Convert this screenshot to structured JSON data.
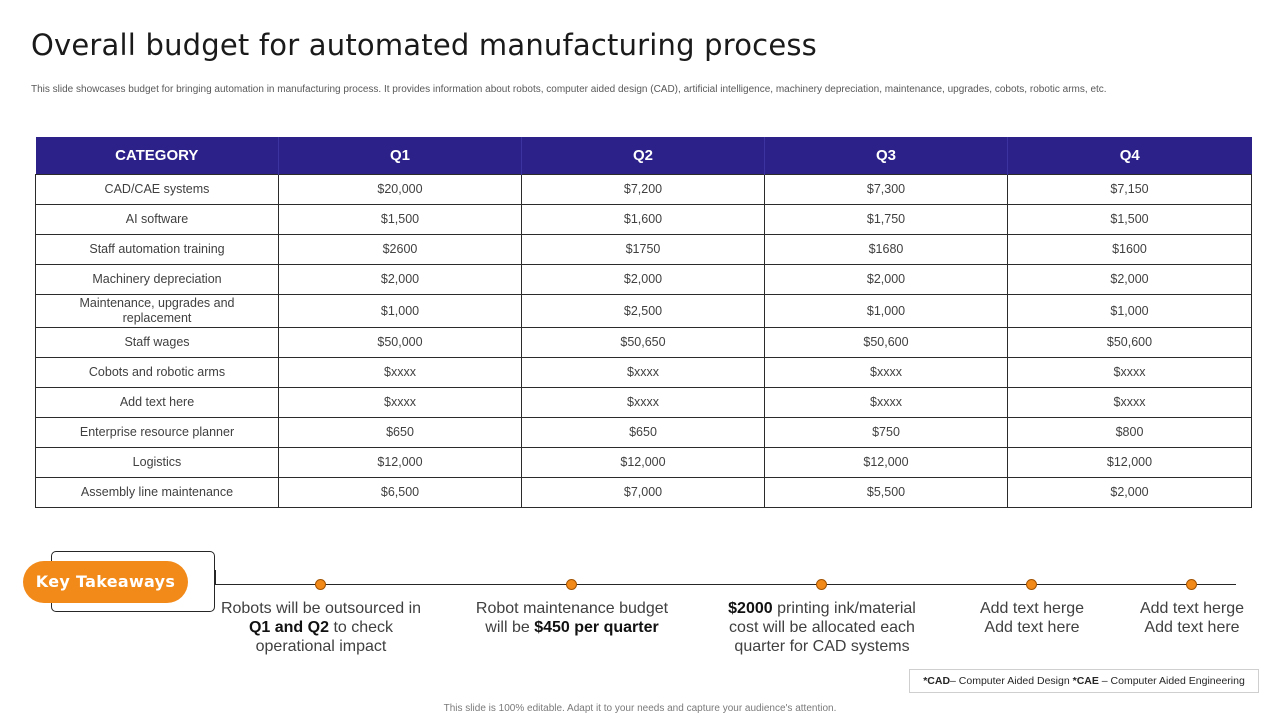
{
  "slide": {
    "title": "Overall budget for automated manufacturing process",
    "subtitle": "This slide showcases budget for bringing automation in manufacturing process. It provides information about robots, computer aided design (CAD), artificial intelligence, machinery depreciation, maintenance, upgrades, cobots, robotic arms, etc.",
    "footer": "This slide is 100% editable. Adapt it to your needs and capture your audience's attention."
  },
  "table": {
    "headers": [
      "CATEGORY",
      "Q1",
      "Q2",
      "Q3",
      "Q4"
    ],
    "rows": [
      [
        "CAD/CAE systems",
        "$20,000",
        "$7,200",
        "$7,300",
        "$7,150"
      ],
      [
        "AI software",
        "$1,500",
        "$1,600",
        "$1,750",
        "$1,500"
      ],
      [
        "Staff automation training",
        "$2600",
        "$1750",
        "$1680",
        "$1600"
      ],
      [
        "Machinery depreciation",
        "$2,000",
        "$2,000",
        "$2,000",
        "$2,000"
      ],
      [
        "Maintenance, upgrades and replacement",
        "$1,000",
        "$2,500",
        "$1,000",
        "$1,000"
      ],
      [
        "Staff wages",
        "$50,000",
        "$50,650",
        "$50,600",
        "$50,600"
      ],
      [
        "Cobots and robotic arms",
        "$xxxx",
        "$xxxx",
        "$xxxx",
        "$xxxx"
      ],
      [
        "Add text here",
        "$xxxx",
        "$xxxx",
        "$xxxx",
        "$xxxx"
      ],
      [
        "Enterprise resource planner",
        "$650",
        "$650",
        "$750",
        "$800"
      ],
      [
        "Logistics",
        "$12,000",
        "$12,000",
        "$12,000",
        "$12,000"
      ],
      [
        "Assembly line maintenance",
        "$6,500",
        "$7,000",
        "$5,500",
        "$2,000"
      ]
    ]
  },
  "takeaways": {
    "label": "Key Takeaways",
    "items": [
      {
        "t1": "Robots will be outsourced in",
        "b1": "Q1 and Q2",
        "t2": " to check operational impact"
      },
      {
        "t1": "Robot maintenance budget will be ",
        "b1": "$450 per quarter",
        "t2": ""
      },
      {
        "t1": "",
        "b1": "$2000",
        "t2": " printing ink/material cost will be allocated each quarter for CAD systems"
      },
      {
        "t1": "Add text herge Add text here",
        "b1": "",
        "t2": ""
      },
      {
        "t1": "Add text herge Add text here",
        "b1": "",
        "t2": ""
      }
    ]
  },
  "legend": {
    "cad_abbr": "*CAD",
    "cad_text": "– Computer Aided Design ",
    "cae_abbr": "*CAE",
    "cae_text": " – Computer Aided Engineering"
  },
  "colors": {
    "header_bg": "#2b2188",
    "accent": "#f28a1a"
  }
}
